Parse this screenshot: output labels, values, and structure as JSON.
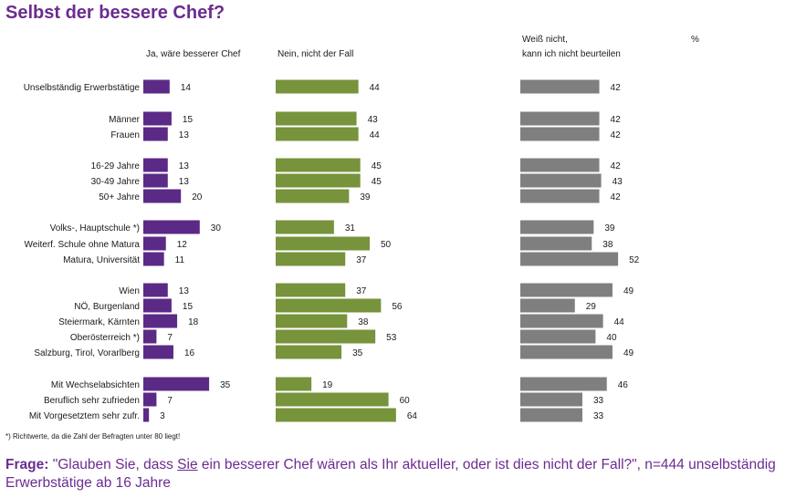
{
  "title": "Selbst der bessere Chef?",
  "headers": {
    "ja": "Ja, wäre besserer Chef",
    "nein": "Nein, nicht der Fall",
    "weiss_line1": "Weiß nicht,",
    "weiss_line2": "kann ich nicht beurteilen",
    "unit": "%"
  },
  "chart_data": {
    "type": "bar",
    "orientation": "horizontal",
    "title": "Selbst der bessere Chef?",
    "unit": "%",
    "categories": [
      "Unselbständig Erwerbstätige",
      "Männer",
      "Frauen",
      "16-29 Jahre",
      "30-49 Jahre",
      "50+ Jahre",
      "Volks-, Hauptschule *)",
      "Weiterf. Schule ohne Matura",
      "Matura, Universität",
      "Wien",
      "NÖ, Burgenland",
      "Steiermark, Kärnten",
      "Oberösterreich *)",
      "Salzburg, Tirol, Vorarlberg",
      "Mit Wechselabsichten",
      "Beruflich sehr zufrieden",
      "Mit Vorgesetztem sehr zufr."
    ],
    "series": [
      {
        "name": "Ja, wäre besserer Chef",
        "color": "#5b2a86",
        "values": [
          14,
          15,
          13,
          13,
          13,
          20,
          30,
          12,
          11,
          13,
          15,
          18,
          7,
          16,
          35,
          7,
          3
        ]
      },
      {
        "name": "Nein, nicht der Fall",
        "color": "#77933c",
        "values": [
          44,
          43,
          44,
          45,
          45,
          39,
          31,
          50,
          37,
          37,
          56,
          38,
          53,
          35,
          19,
          60,
          64
        ]
      },
      {
        "name": "Weiß nicht, kann ich nicht beurteilen",
        "color": "#7f7f7f",
        "values": [
          42,
          42,
          42,
          42,
          43,
          42,
          39,
          38,
          52,
          49,
          29,
          44,
          40,
          49,
          46,
          33,
          33
        ]
      }
    ]
  },
  "footnote": "*) Richtwerte, da die Zahl der Befragten unter 80 liegt!",
  "question": {
    "label": "Frage:",
    "text_before": "\"Glauben Sie, dass ",
    "underlined": "Sie",
    "text_after": " ein besserer Chef wären als Ihr aktueller, oder ist dies nicht der Fall?\", n=444 unselbständig Erwerbstätige ab 16 Jahre"
  }
}
